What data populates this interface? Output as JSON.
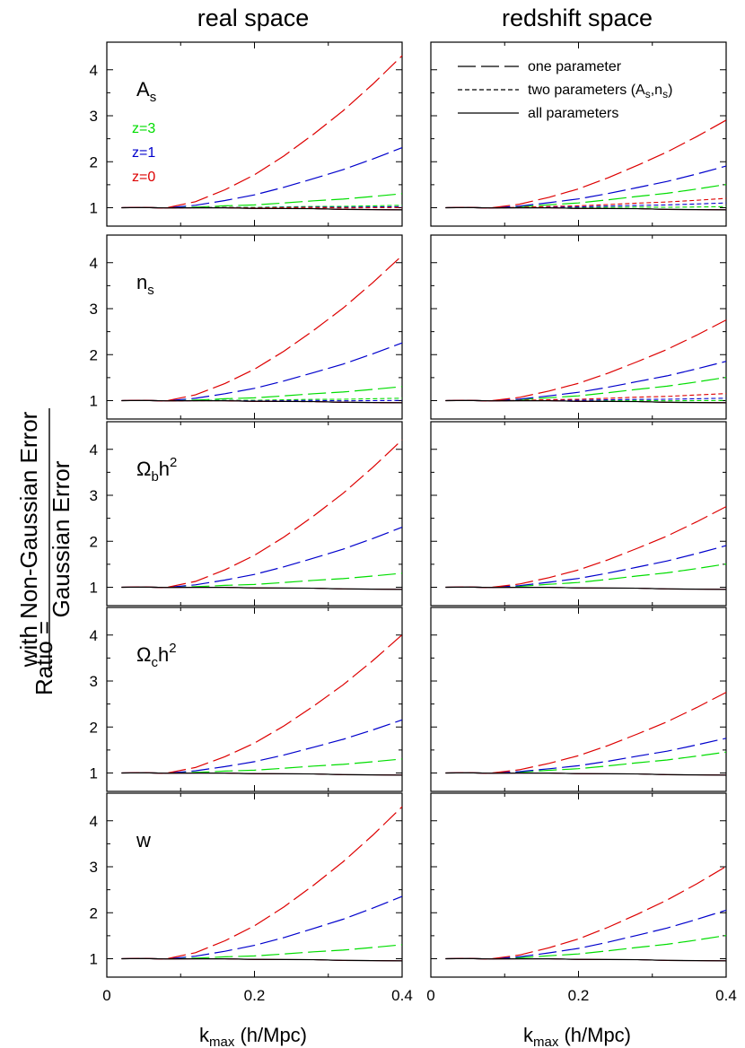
{
  "chart_data": {
    "type": "line",
    "columns": [
      "real space",
      "redshift space"
    ],
    "parameters": [
      {
        "base": "A",
        "sub": "s",
        "sup": ""
      },
      {
        "base": "n",
        "sub": "s",
        "sup": ""
      },
      {
        "base": "Ω",
        "sub": "b",
        "sup": "h2"
      },
      {
        "base": "Ω",
        "sub": "c",
        "sup": "h2"
      },
      {
        "base": "w",
        "sub": "",
        "sup": ""
      }
    ],
    "x_axis": {
      "label_main": "k",
      "label_sub": "max",
      "label_rest": " (h/Mpc)",
      "range": [
        0,
        0.4
      ],
      "ticks": [
        "0",
        "0.2",
        "0.4"
      ]
    },
    "y_axis": {
      "label_left": "Ratio =",
      "numerator": "with Non-Gaussian Error",
      "denominator": "Gaussian Error",
      "range": [
        0.6,
        4.6
      ],
      "ticks": [
        "1",
        "2",
        "3",
        "4"
      ]
    },
    "redshift_labels": [
      {
        "text": "z=3",
        "color": "#00dd00"
      },
      {
        "text": "z=1",
        "color": "#0000cc"
      },
      {
        "text": "z=0",
        "color": "#dd0000"
      }
    ],
    "legend": [
      {
        "label": "one parameter",
        "style": "long-dash"
      },
      {
        "label": "two parameters (A",
        "sub1": "s",
        "mid": ",n",
        "sub2": "s",
        "end": ")",
        "style": "short-dash"
      },
      {
        "label": "all parameters",
        "style": "solid"
      }
    ],
    "k": [
      0.02,
      0.05,
      0.08,
      0.12,
      0.16,
      0.2,
      0.24,
      0.28,
      0.32,
      0.36,
      0.4
    ],
    "series_colors": {
      "z0": "#dd0000",
      "z1": "#0000cc",
      "z3": "#00dd00"
    },
    "one_parameter_endpoints": {
      "real space": [
        {
          "z0": 4.3,
          "z1": 2.3,
          "z3": 1.3
        },
        {
          "z0": 4.15,
          "z1": 2.25,
          "z3": 1.3
        },
        {
          "z0": 4.2,
          "z1": 2.3,
          "z3": 1.3
        },
        {
          "z0": 4.0,
          "z1": 2.15,
          "z3": 1.3
        },
        {
          "z0": 4.3,
          "z1": 2.35,
          "z3": 1.3
        }
      ],
      "redshift space": [
        {
          "z0": 2.9,
          "z1": 1.9,
          "z3": 1.5
        },
        {
          "z0": 2.75,
          "z1": 1.85,
          "z3": 1.5
        },
        {
          "z0": 2.75,
          "z1": 1.9,
          "z3": 1.5
        },
        {
          "z0": 2.75,
          "z1": 1.75,
          "z3": 1.45
        },
        {
          "z0": 3.0,
          "z1": 2.05,
          "z3": 1.5
        }
      ]
    },
    "two_parameter_endpoints": {
      "real space": [
        {
          "z0": 1.0,
          "z1": 1.02,
          "z3": 1.05
        },
        {
          "z0": 0.95,
          "z1": 1.0,
          "z3": 1.05
        }
      ],
      "redshift space": [
        {
          "z0": 1.2,
          "z1": 1.1,
          "z3": 1.02
        },
        {
          "z0": 1.15,
          "z1": 1.05,
          "z3": 1.0
        }
      ]
    },
    "all_parameters_value": 0.95
  }
}
